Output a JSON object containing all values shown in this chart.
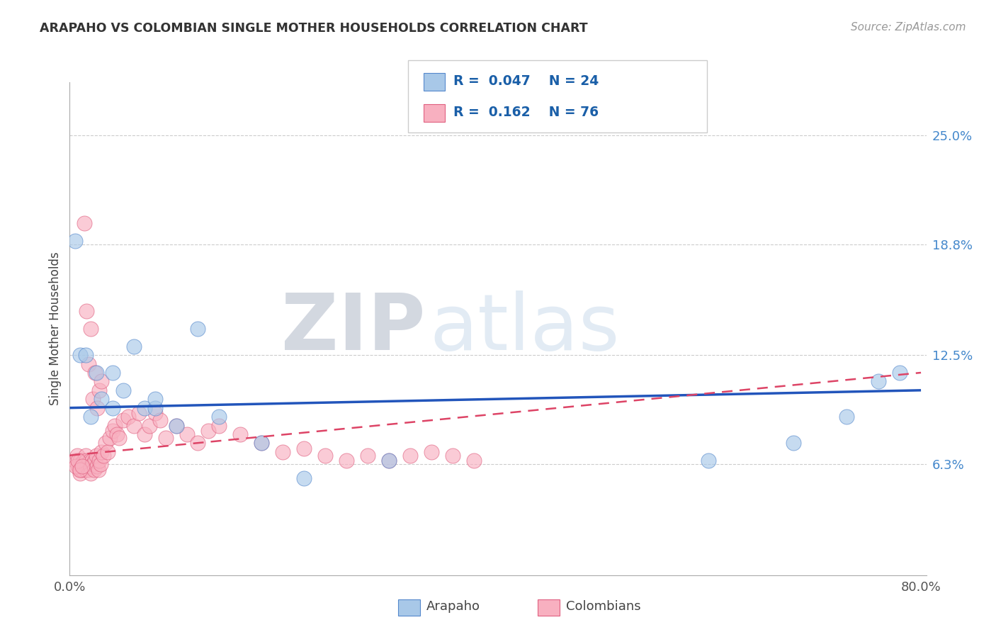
{
  "title": "ARAPAHO VS COLOMBIAN SINGLE MOTHER HOUSEHOLDS CORRELATION CHART",
  "source": "Source: ZipAtlas.com",
  "ylabel": "Single Mother Households",
  "xmin": 0.0,
  "xmax": 0.8,
  "ymin": 0.0,
  "ymax": 0.28,
  "watermark_zip": "ZIP",
  "watermark_atlas": "atlas",
  "legend_arapaho_R": "0.047",
  "legend_arapaho_N": "24",
  "legend_colombians_R": "0.162",
  "legend_colombians_N": "76",
  "arapaho_fill": "#a8c8e8",
  "arapaho_edge": "#5588cc",
  "colombians_fill": "#f8b0c0",
  "colombians_edge": "#e06080",
  "arapaho_line_color": "#2255bb",
  "colombians_line_color": "#dd4466",
  "ytick_vals": [
    0.063,
    0.125,
    0.188,
    0.25
  ],
  "ytick_labels": [
    "6.3%",
    "12.5%",
    "18.8%",
    "25.0%"
  ],
  "grid_color": "#cccccc",
  "arapaho_x": [
    0.005,
    0.01,
    0.015,
    0.02,
    0.025,
    0.03,
    0.04,
    0.05,
    0.06,
    0.07,
    0.08,
    0.1,
    0.12,
    0.14,
    0.18,
    0.22,
    0.3,
    0.6,
    0.68,
    0.73,
    0.76,
    0.78,
    0.04,
    0.08
  ],
  "arapaho_y": [
    0.19,
    0.125,
    0.125,
    0.09,
    0.115,
    0.1,
    0.095,
    0.105,
    0.13,
    0.095,
    0.095,
    0.085,
    0.14,
    0.09,
    0.075,
    0.055,
    0.065,
    0.065,
    0.075,
    0.09,
    0.11,
    0.115,
    0.115,
    0.1
  ],
  "colombians_x": [
    0.005,
    0.007,
    0.008,
    0.009,
    0.01,
    0.01,
    0.011,
    0.012,
    0.013,
    0.014,
    0.015,
    0.015,
    0.016,
    0.016,
    0.017,
    0.018,
    0.019,
    0.02,
    0.02,
    0.021,
    0.022,
    0.023,
    0.024,
    0.025,
    0.026,
    0.027,
    0.028,
    0.029,
    0.03,
    0.032,
    0.034,
    0.036,
    0.038,
    0.04,
    0.042,
    0.044,
    0.046,
    0.05,
    0.055,
    0.06,
    0.065,
    0.07,
    0.075,
    0.08,
    0.085,
    0.09,
    0.1,
    0.11,
    0.12,
    0.13,
    0.14,
    0.16,
    0.18,
    0.2,
    0.22,
    0.24,
    0.26,
    0.28,
    0.3,
    0.32,
    0.34,
    0.36,
    0.38,
    0.006,
    0.008,
    0.01,
    0.012,
    0.014,
    0.016,
    0.018,
    0.02,
    0.022,
    0.024,
    0.026,
    0.028,
    0.03
  ],
  "colombians_y": [
    0.065,
    0.068,
    0.062,
    0.06,
    0.065,
    0.058,
    0.063,
    0.06,
    0.065,
    0.062,
    0.068,
    0.06,
    0.062,
    0.065,
    0.063,
    0.06,
    0.065,
    0.062,
    0.058,
    0.065,
    0.063,
    0.06,
    0.065,
    0.068,
    0.062,
    0.06,
    0.065,
    0.063,
    0.07,
    0.068,
    0.075,
    0.07,
    0.078,
    0.082,
    0.085,
    0.08,
    0.078,
    0.088,
    0.09,
    0.085,
    0.092,
    0.08,
    0.085,
    0.092,
    0.088,
    0.078,
    0.085,
    0.08,
    0.075,
    0.082,
    0.085,
    0.08,
    0.075,
    0.07,
    0.072,
    0.068,
    0.065,
    0.068,
    0.065,
    0.068,
    0.07,
    0.068,
    0.065,
    0.062,
    0.065,
    0.06,
    0.062,
    0.2,
    0.15,
    0.12,
    0.14,
    0.1,
    0.115,
    0.095,
    0.105,
    0.11
  ]
}
